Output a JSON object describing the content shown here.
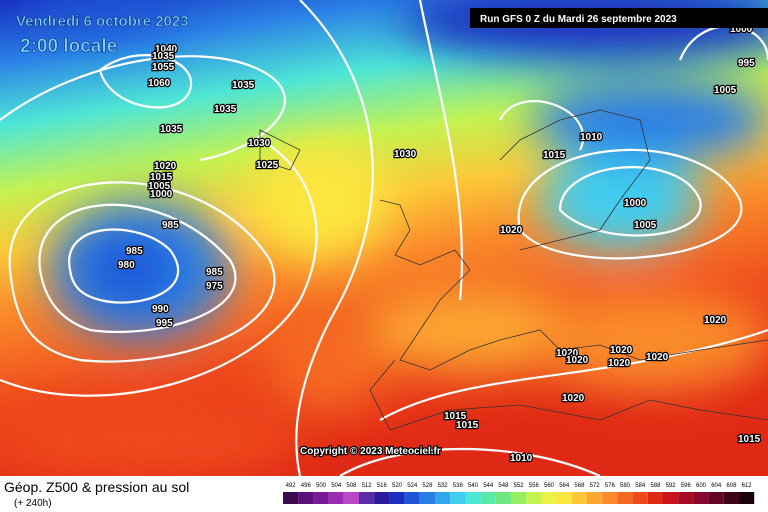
{
  "header": {
    "date": "Vendredi 6 octobre 2023",
    "time": "2:00 locale",
    "run": "Run GFS 0 Z du Mardi 26 septembre 2023"
  },
  "copyright": "Copyright © 2023 Meteociel.fr",
  "footer": {
    "title": "Géop. Z500 & pression au sol",
    "lead": "(+ 240h)"
  },
  "isobar_labels": [
    1040,
    1035,
    1055,
    1060,
    1035,
    1035,
    1035,
    1030,
    1025,
    1020,
    1015,
    1005,
    1000,
    985,
    985,
    980,
    985,
    975,
    990,
    995,
    1030,
    1020,
    1015,
    1010,
    1000,
    1005,
    995,
    1005,
    1000,
    1020,
    1020,
    1020,
    1020,
    1020,
    1020,
    1015,
    1015,
    1010,
    1020,
    1015
  ],
  "scale": {
    "values": [
      492,
      496,
      500,
      504,
      508,
      512,
      516,
      520,
      524,
      528,
      532,
      536,
      540,
      544,
      548,
      552,
      556,
      560,
      564,
      568,
      572,
      576,
      580,
      584,
      588,
      592,
      596,
      600,
      604,
      608,
      612
    ],
    "colors": [
      "#3c0a4e",
      "#5b0f78",
      "#7a1a96",
      "#9b2bb2",
      "#b948c8",
      "#5a2ca8",
      "#2a1a9e",
      "#1a2fc0",
      "#1f55d8",
      "#2a7fe6",
      "#33a7ee",
      "#3fcdf0",
      "#4ee6d6",
      "#5aeaa8",
      "#6ee880",
      "#98ee62",
      "#c4f250",
      "#eaf24a",
      "#fbe640",
      "#fcc838",
      "#fca830",
      "#fa8a2a",
      "#f56a22",
      "#ee4a1c",
      "#e02a16",
      "#c8141a",
      "#a80c22",
      "#86082a",
      "#620626",
      "#400418",
      "#1c0208"
    ]
  }
}
